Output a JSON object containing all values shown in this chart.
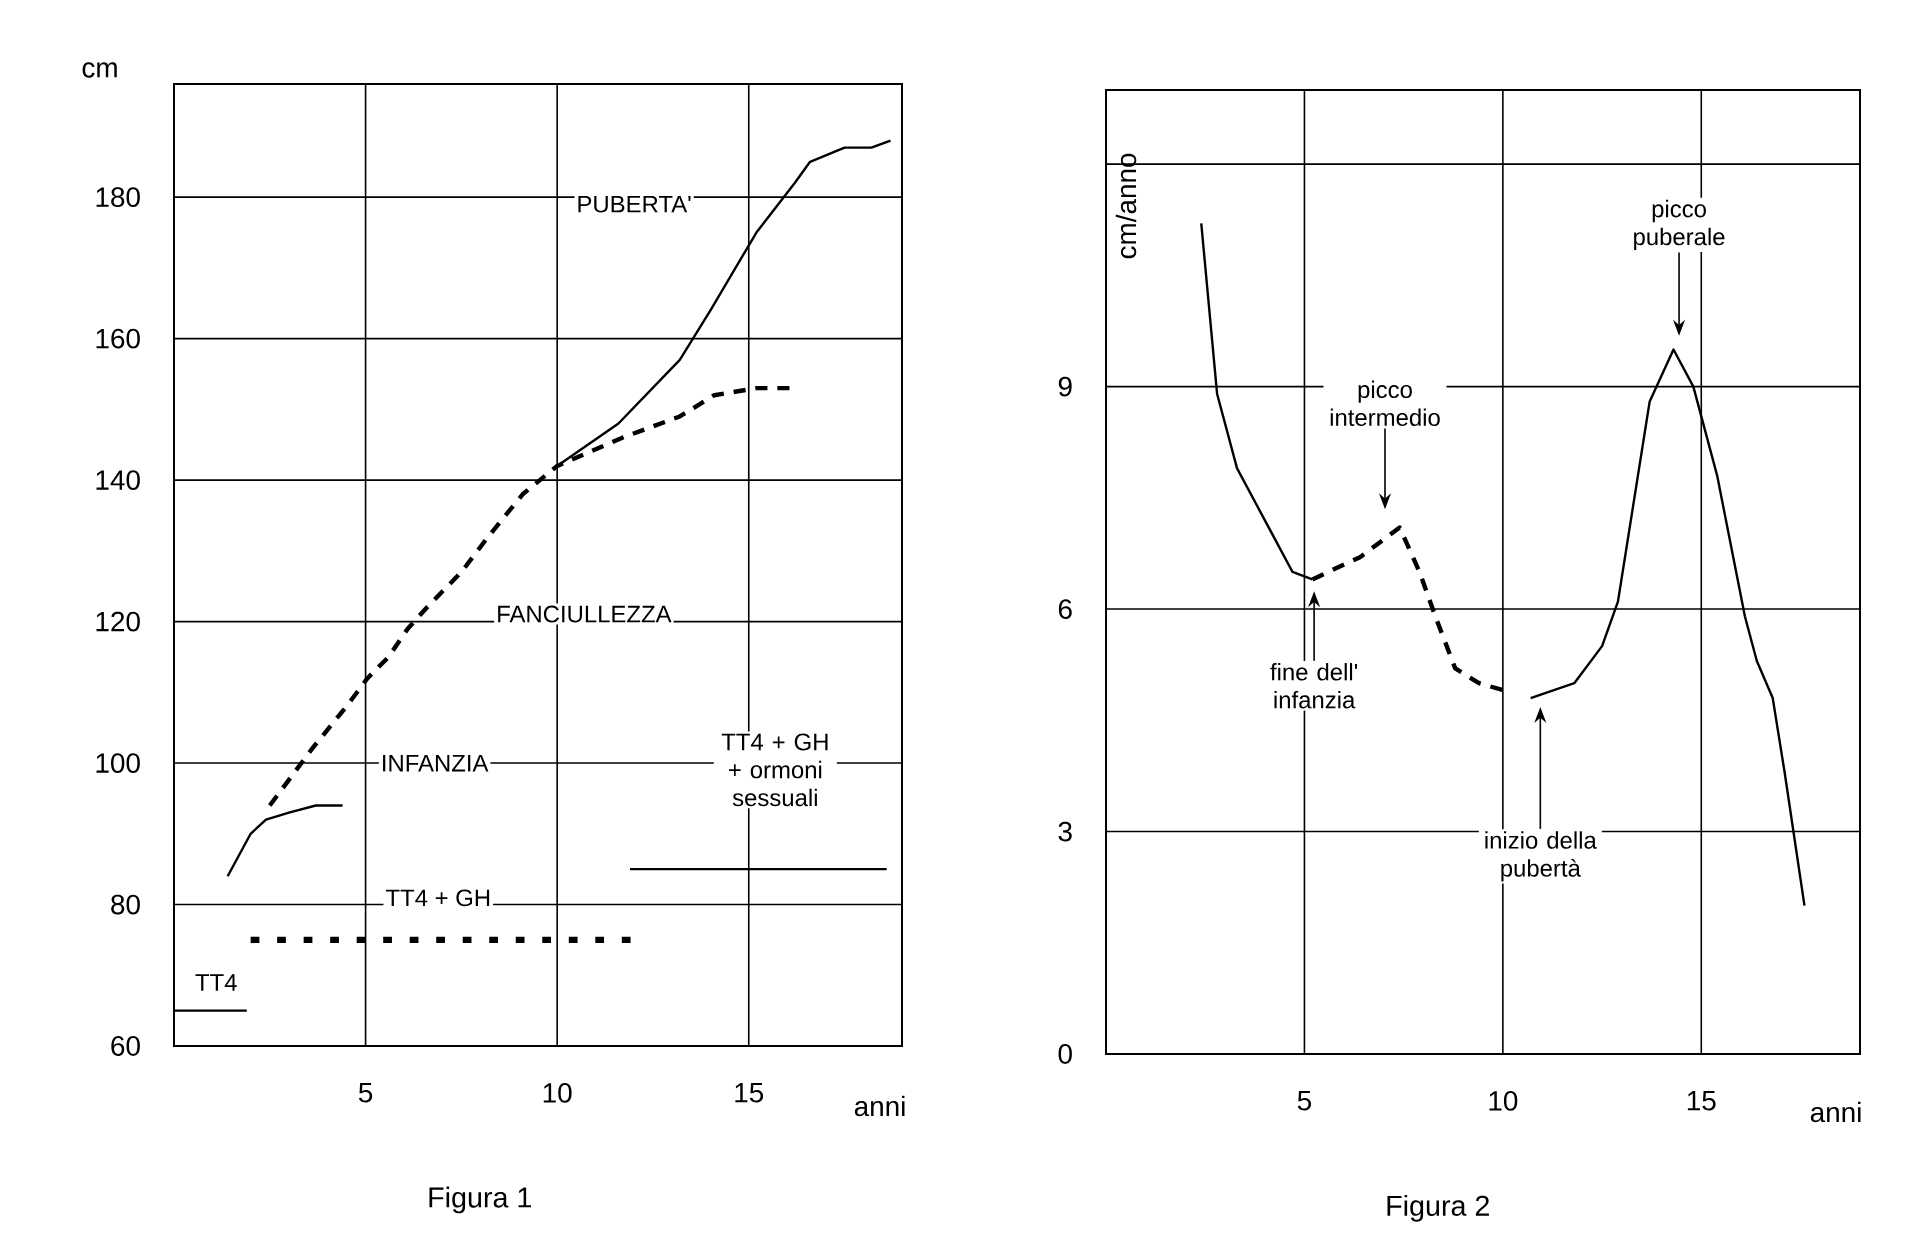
{
  "chart_data": [
    {
      "type": "line",
      "xlabel": "anni",
      "ylabel": "cm",
      "xlim": [
        0,
        19
      ],
      "ylim": [
        60,
        196
      ],
      "xticks": [
        5,
        10,
        15
      ],
      "yticks": [
        60,
        80,
        100,
        120,
        140,
        160,
        180
      ],
      "grid": true,
      "series": [
        {
          "color": "#000000",
          "line_style": "solid",
          "x": [
            0,
            1.9
          ],
          "values": [
            65,
            65
          ]
        },
        {
          "color": "#000000",
          "line_style": "dotted",
          "x": [
            2,
            12
          ],
          "values": [
            75,
            75
          ]
        },
        {
          "color": "#000000",
          "line_style": "solid",
          "x": [
            11.9,
            18.6
          ],
          "values": [
            85,
            85
          ]
        },
        {
          "color": "#000000",
          "line_style": "solid",
          "x": [
            1.4,
            2.0,
            2.4,
            3.0,
            3.7,
            4.4
          ],
          "values": [
            84,
            90,
            92,
            93,
            94,
            94
          ]
        },
        {
          "color": "#000000",
          "line_style": "dashed",
          "x": [
            2.5,
            3.05,
            3.6,
            4.5,
            5.05,
            5.6,
            6.1,
            6.6,
            7.5,
            8.2,
            9.1,
            10,
            11.7,
            13.2,
            14.1,
            15.2,
            16.2
          ],
          "values": [
            94,
            98,
            102,
            108,
            112,
            115,
            119,
            122,
            127,
            132,
            138,
            142,
            146,
            149,
            152,
            153,
            153
          ]
        },
        {
          "color": "#000000",
          "line_style": "solid",
          "x": [
            10,
            11.6,
            13.2,
            14,
            15.2,
            16.2,
            16.6,
            17.5,
            18.2,
            18.7
          ],
          "values": [
            142,
            148,
            157,
            164,
            175,
            182,
            185,
            187,
            187,
            188
          ]
        }
      ],
      "annotations": [
        "PUBERTA'",
        "FANCIULLEZZA",
        "INFANZIA",
        "TT4 + GH",
        "TT4",
        "TT4 + GH + ormoni sessuali",
        "Figura 1"
      ]
    },
    {
      "type": "line",
      "xlabel": "anni",
      "ylabel": "cm/anno",
      "xlim": [
        0,
        19
      ],
      "ylim": [
        0,
        13
      ],
      "xticks": [
        5,
        10,
        15
      ],
      "yticks": [
        0,
        3,
        6,
        9,
        {
          "value": 12,
          "label": null
        }
      ],
      "grid": true,
      "series": [
        {
          "color": "#000000",
          "line_style": "solid",
          "x": [
            2.4,
            2.8,
            3.3,
            4.7,
            5.2
          ],
          "values": [
            11.2,
            8.9,
            7.9,
            6.5,
            6.4
          ]
        },
        {
          "color": "#000000",
          "line_style": "dashed",
          "x": [
            5.2,
            6.4,
            7.4,
            7.9,
            8.3,
            8.8,
            9.4,
            10.05
          ],
          "values": [
            6.4,
            6.7,
            7.1,
            6.5,
            5.9,
            5.2,
            5.0,
            4.9
          ]
        },
        {
          "color": "#000000",
          "line_style": "solid",
          "x": [
            10.7,
            11.8,
            12.5,
            12.9,
            13.7,
            14.3,
            14.8,
            15.4,
            16.1,
            16.4,
            16.8,
            17.1,
            17.6
          ],
          "values": [
            4.8,
            5.0,
            5.5,
            6.1,
            8.8,
            9.5,
            9.0,
            7.8,
            5.9,
            5.3,
            4.8,
            3.8,
            2.0
          ]
        }
      ],
      "annotations": [
        "picco intermedio",
        "picco puberale",
        "fine dell' infanzia",
        "inizio della pubertà",
        "Figura 2"
      ]
    }
  ]
}
